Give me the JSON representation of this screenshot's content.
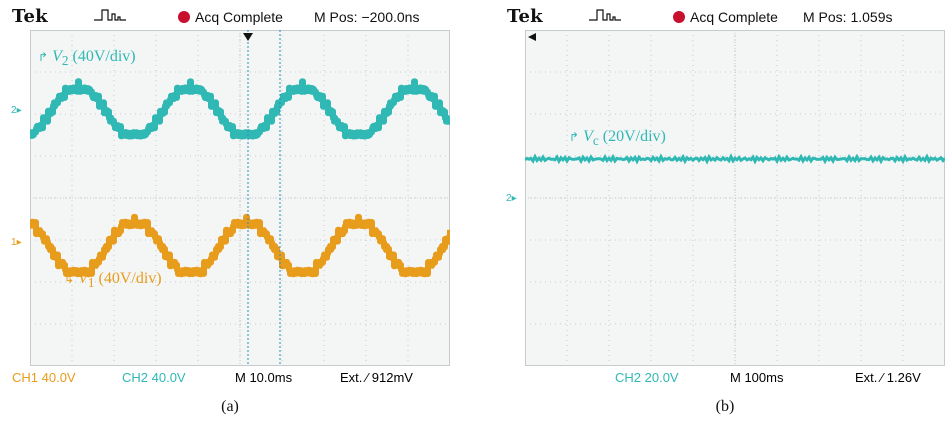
{
  "colors": {
    "ch1": "#e89c1c",
    "ch2": "#2fb8b4",
    "acq_dot": "#c8102e",
    "grid": "#b9bfc2",
    "screen_bg": "#f4f6f6"
  },
  "panel_a": {
    "brand": "Tek",
    "trigger_icon": "trigger-pulse-icon",
    "acq_status": "Acq Complete",
    "m_pos": "M Pos: −200.0ns",
    "trace_v2": {
      "symbol": "V",
      "sub": "2",
      "scale": "(40V/div)"
    },
    "trace_v1": {
      "symbol": "V",
      "sub": "1",
      "scale": "(40V/div)"
    },
    "marker_ch2": "2",
    "marker_ch1": "1",
    "footer": {
      "ch1": "CH1  40.0V",
      "ch2": "CH2  40.0V",
      "time": "M 10.0ms",
      "ext": "Ext. ⁄ 912mV"
    },
    "caption": "(a)"
  },
  "panel_b": {
    "brand": "Tek",
    "trigger_icon": "trigger-pulse-icon",
    "acq_status": "Acq Complete",
    "m_pos": "M Pos: 1.059s",
    "trace_vc": {
      "symbol": "V",
      "sub": "c",
      "scale": "(20V/div)"
    },
    "marker_ch2": "2",
    "footer": {
      "ch2": "CH2  20.0V",
      "time": "M 100ms",
      "ext": "Ext. ⁄ 1.26V"
    },
    "caption": "(b)"
  }
}
